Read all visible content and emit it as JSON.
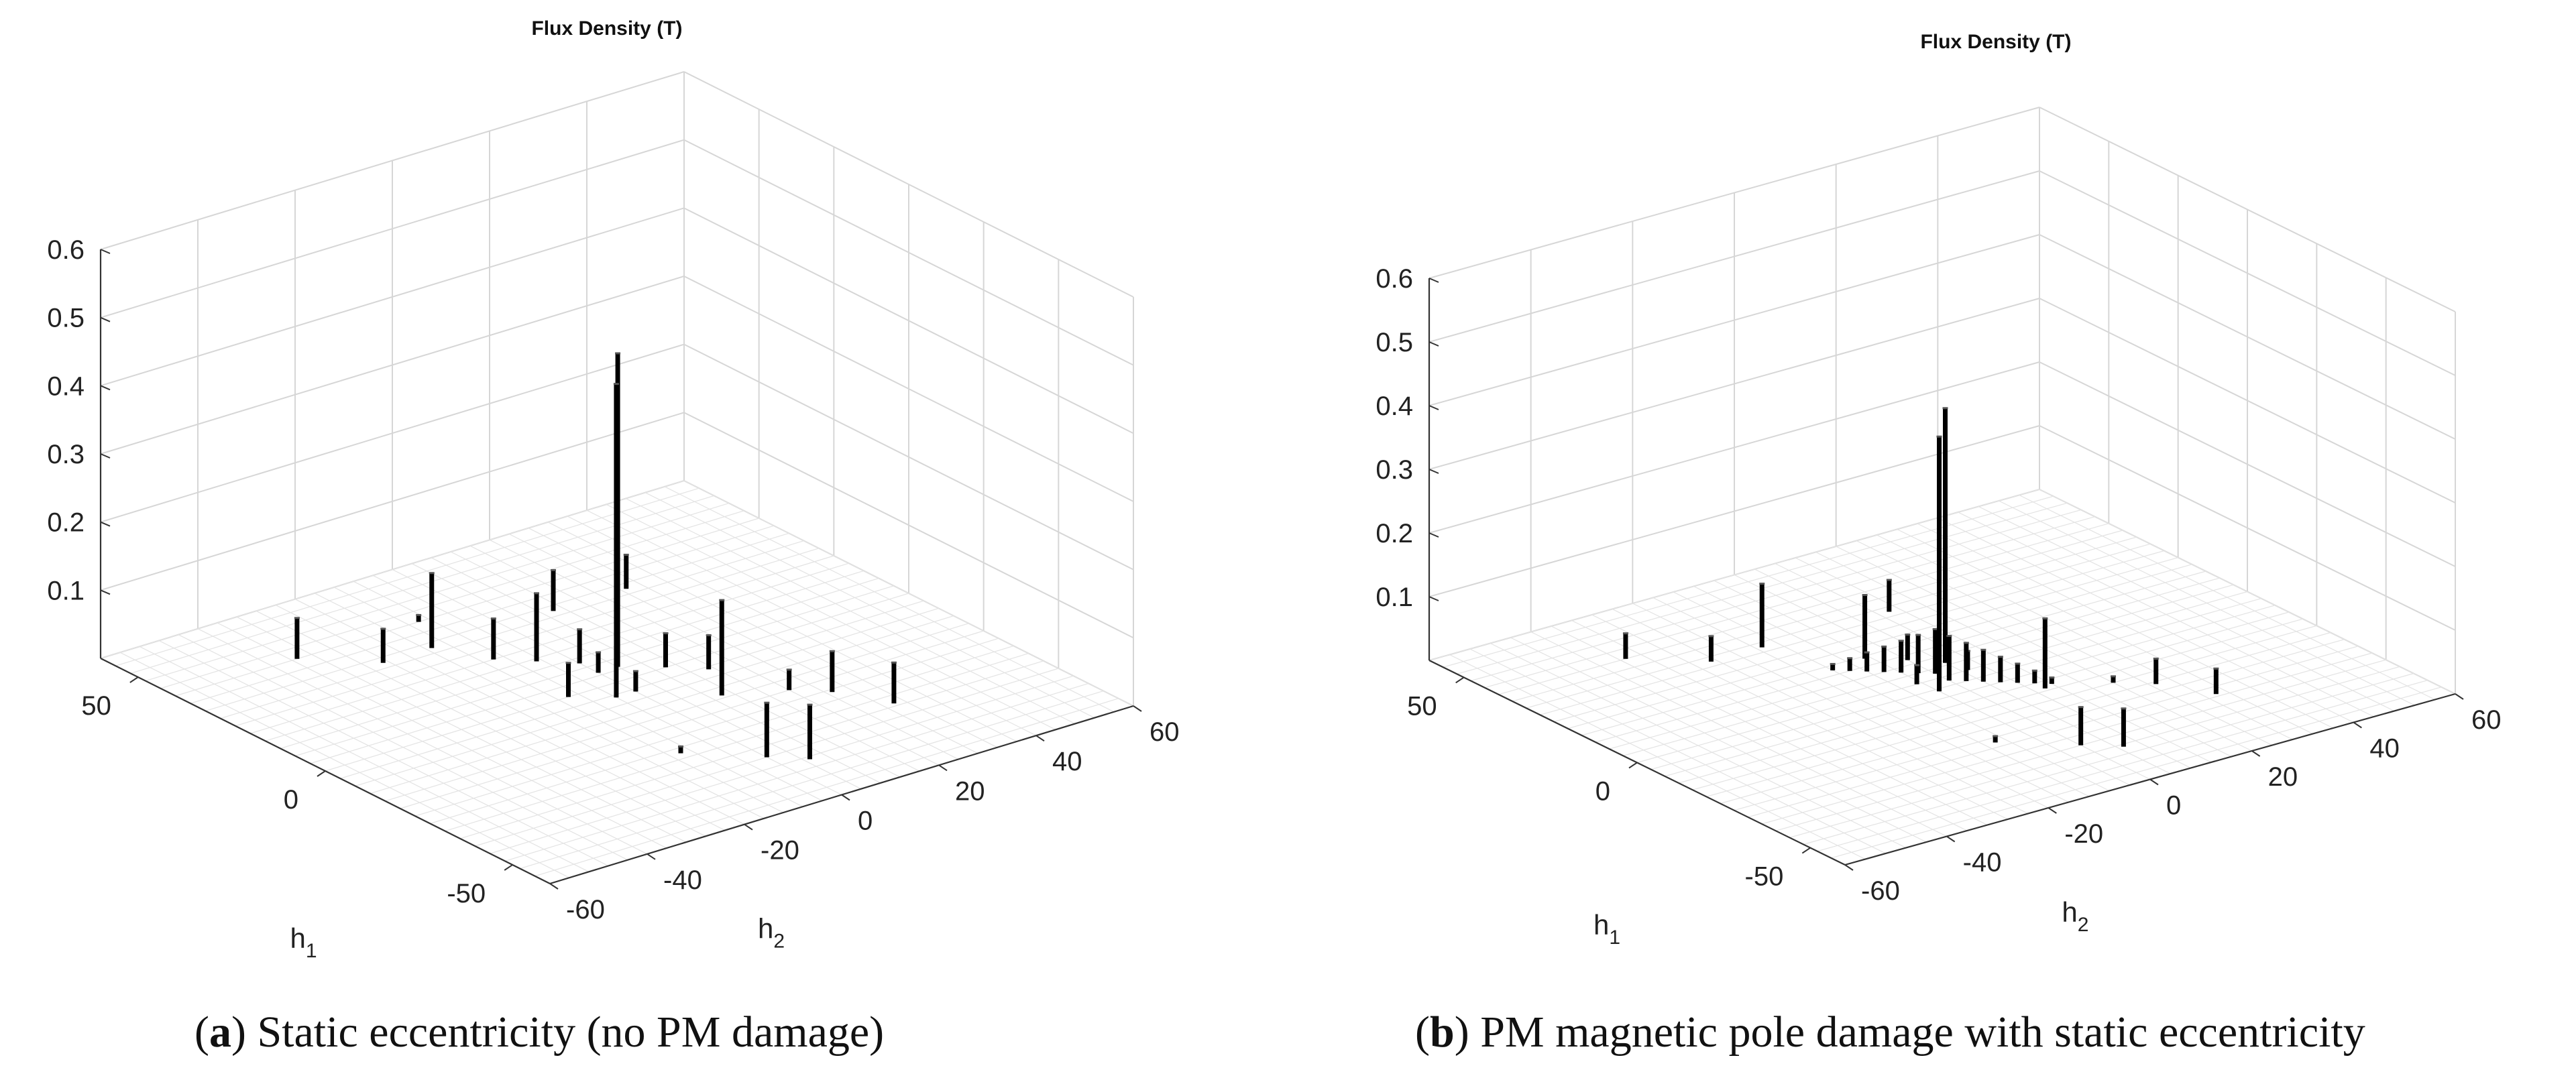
{
  "chart_data": [
    {
      "type": "bar3d",
      "panel_tag": "a",
      "caption": "Static eccentricity (no PM damage)",
      "title": "Flux Density (T)",
      "xlabel": "h",
      "xlabel_sub": "1",
      "ylabel": "h",
      "ylabel_sub": "2",
      "zlim": [
        0,
        0.6
      ],
      "z_ticks": [
        "0.1",
        "0.2",
        "0.3",
        "0.4",
        "0.5",
        "0.6"
      ],
      "x_ticks": [
        "50",
        "0",
        "-50"
      ],
      "y_ticks": [
        "-60",
        "-40",
        "-20",
        "0",
        "20",
        "40",
        "60"
      ],
      "bars": [
        {
          "h1": -5,
          "h2": -4,
          "value": 0.46
        },
        {
          "h1": 5,
          "h2": 4,
          "value": 0.46
        },
        {
          "h1": 40,
          "h2": -35,
          "value": 0.06
        },
        {
          "h1": 30,
          "h2": -25,
          "value": 0.05
        },
        {
          "h1": 30,
          "h2": -15,
          "value": 0.11
        },
        {
          "h1": 20,
          "h2": -10,
          "value": 0.06
        },
        {
          "h1": 15,
          "h2": -5,
          "value": 0.1
        },
        {
          "h1": 10,
          "h2": 0,
          "value": 0.05
        },
        {
          "h1": 30,
          "h2": 10,
          "value": 0.06
        },
        {
          "h1": 30,
          "h2": 25,
          "value": 0.05
        },
        {
          "h1": 0,
          "h2": -10,
          "value": 0.05
        },
        {
          "h1": 0,
          "h2": 10,
          "value": 0.05
        },
        {
          "h1": -5,
          "h2": 15,
          "value": 0.05
        },
        {
          "h1": -15,
          "h2": 10,
          "value": 0.14
        },
        {
          "h1": -20,
          "h2": 20,
          "value": 0.03
        },
        {
          "h1": -25,
          "h2": 25,
          "value": 0.06
        },
        {
          "h1": -35,
          "h2": 30,
          "value": 0.06
        },
        {
          "h1": -30,
          "h2": -10,
          "value": 0.01
        },
        {
          "h1": -40,
          "h2": 0,
          "value": 0.08
        },
        {
          "h1": -45,
          "h2": 5,
          "value": 0.08
        },
        {
          "h1": 40,
          "h2": -10,
          "value": 0.01
        },
        {
          "h1": -5,
          "h2": 0,
          "value": 0.03
        },
        {
          "h1": 5,
          "h2": 0,
          "value": 0.03
        }
      ]
    },
    {
      "type": "bar3d",
      "panel_tag": "b",
      "caption": "PM magnetic pole damage with static eccentricity",
      "title": "Flux Density (T)",
      "xlabel": "h",
      "xlabel_sub": "1",
      "ylabel": "h",
      "ylabel_sub": "2",
      "zlim": [
        0,
        0.6
      ],
      "z_ticks": [
        "0.1",
        "0.2",
        "0.3",
        "0.4",
        "0.5",
        "0.6"
      ],
      "x_ticks": [
        "50",
        "0",
        "-50"
      ],
      "y_ticks": [
        "-60",
        "-40",
        "-20",
        "0",
        "20",
        "40",
        "60"
      ],
      "bars": [
        {
          "h1": -5,
          "h2": -4,
          "value": 0.4
        },
        {
          "h1": 5,
          "h2": 4,
          "value": 0.4
        },
        {
          "h1": 40,
          "h2": -35,
          "value": 0.04
        },
        {
          "h1": 30,
          "h2": -25,
          "value": 0.04
        },
        {
          "h1": 30,
          "h2": -15,
          "value": 0.1
        },
        {
          "h1": 15,
          "h2": -5,
          "value": 0.1
        },
        {
          "h1": 10,
          "h2": 0,
          "value": 0.04
        },
        {
          "h1": 30,
          "h2": 10,
          "value": 0.05
        },
        {
          "h1": -15,
          "h2": 10,
          "value": 0.11
        },
        {
          "h1": -25,
          "h2": 25,
          "value": 0.04
        },
        {
          "h1": -35,
          "h2": 30,
          "value": 0.04
        },
        {
          "h1": -40,
          "h2": 0,
          "value": 0.06
        },
        {
          "h1": -45,
          "h2": 5,
          "value": 0.06
        },
        {
          "h1": -30,
          "h2": -10,
          "value": 0.01
        },
        {
          "h1": -20,
          "h2": 20,
          "value": 0.01
        },
        {
          "h1": -8,
          "h2": 6,
          "value": 0.04
        },
        {
          "h1": -6,
          "h2": 4,
          "value": 0.05
        },
        {
          "h1": -4,
          "h2": 2,
          "value": 0.06
        },
        {
          "h1": -2,
          "h2": 0,
          "value": 0.07
        },
        {
          "h1": 2,
          "h2": 0,
          "value": 0.07
        },
        {
          "h1": 4,
          "h2": -2,
          "value": 0.06
        },
        {
          "h1": 6,
          "h2": -4,
          "value": 0.05
        },
        {
          "h1": 8,
          "h2": -6,
          "value": 0.04
        },
        {
          "h1": -10,
          "h2": 8,
          "value": 0.03
        },
        {
          "h1": 10,
          "h2": -8,
          "value": 0.03
        },
        {
          "h1": -12,
          "h2": 10,
          "value": 0.02
        },
        {
          "h1": 12,
          "h2": -10,
          "value": 0.02
        },
        {
          "h1": -14,
          "h2": 12,
          "value": 0.01
        },
        {
          "h1": 14,
          "h2": -12,
          "value": 0.01
        },
        {
          "h1": 0,
          "h2": 5,
          "value": 0.03
        },
        {
          "h1": 0,
          "h2": -5,
          "value": 0.03
        }
      ]
    }
  ]
}
